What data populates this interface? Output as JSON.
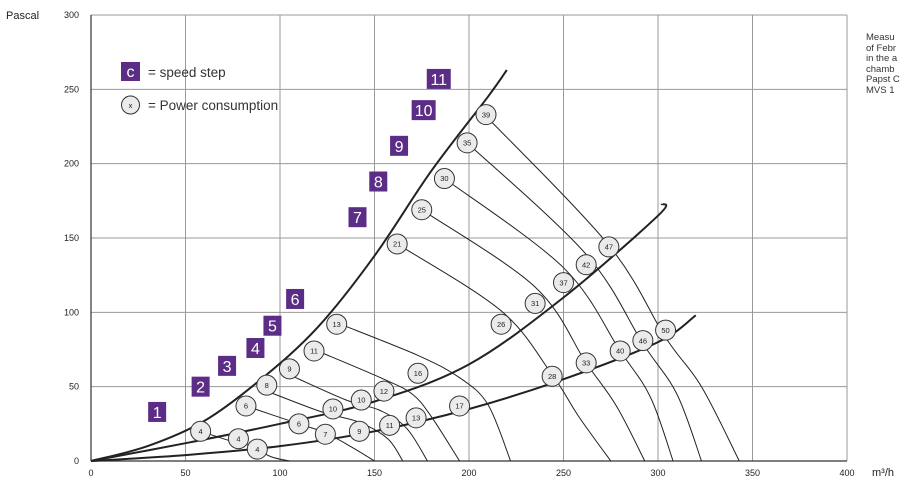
{
  "chart_data": {
    "type": "line",
    "ylabel": "Pascal",
    "xlabel": "m³/h",
    "xlim": [
      0,
      400
    ],
    "ylim": [
      0,
      300
    ],
    "x_ticks": [
      0,
      50,
      100,
      150,
      200,
      250,
      300,
      350,
      400
    ],
    "y_ticks": [
      0,
      50,
      100,
      150,
      200,
      250,
      300
    ],
    "grid": true,
    "legend": {
      "step_symbol": "c",
      "step_text": "= speed step",
      "power_symbol": "x",
      "power_text": "= Power consumption"
    },
    "system_curves": [
      {
        "x": [
          0,
          30,
          60,
          90,
          120,
          150,
          180,
          210,
          220
        ],
        "y": [
          0,
          10,
          27,
          55,
          90,
          138,
          195,
          245,
          263
        ]
      },
      {
        "x": [
          0,
          50,
          100,
          150,
          200,
          250,
          300,
          302
        ],
        "y": [
          0,
          12,
          25,
          40,
          65,
          110,
          165,
          173
        ]
      },
      {
        "x": [
          0,
          50,
          100,
          150,
          200,
          250,
          300,
          320
        ],
        "y": [
          0,
          4,
          10,
          20,
          35,
          55,
          80,
          98
        ]
      }
    ],
    "speed_steps": [
      {
        "label": "1",
        "x": 35,
        "y": 33
      },
      {
        "label": "2",
        "x": 58,
        "y": 50
      },
      {
        "label": "3",
        "x": 72,
        "y": 64
      },
      {
        "label": "4",
        "x": 87,
        "y": 76
      },
      {
        "label": "5",
        "x": 96,
        "y": 91
      },
      {
        "label": "6",
        "x": 108,
        "y": 109
      },
      {
        "label": "7",
        "x": 141,
        "y": 164
      },
      {
        "label": "8",
        "x": 152,
        "y": 188
      },
      {
        "label": "9",
        "x": 163,
        "y": 212
      },
      {
        "label": "10",
        "x": 176,
        "y": 236
      },
      {
        "label": "11",
        "x": 184,
        "y": 257
      }
    ],
    "fan_curves": [
      {
        "x": [
          58,
          75,
          85,
          95,
          105
        ],
        "y": [
          20,
          13,
          10,
          3,
          0
        ]
      },
      {
        "x": [
          82,
          110,
          124,
          137,
          150
        ],
        "y": [
          37,
          25,
          19,
          10,
          0
        ]
      },
      {
        "x": [
          93,
          122,
          142,
          157,
          165
        ],
        "y": [
          47,
          33,
          26,
          15,
          0
        ]
      },
      {
        "x": [
          105,
          135,
          153,
          167,
          178
        ],
        "y": [
          58,
          41,
          34,
          22,
          0
        ]
      },
      {
        "x": [
          118,
          155,
          170,
          180,
          195
        ],
        "y": [
          75,
          55,
          45,
          30,
          0
        ]
      },
      {
        "x": [
          130,
          173,
          195,
          210,
          222
        ],
        "y": [
          93,
          71,
          56,
          38,
          0
        ]
      },
      {
        "x": [
          162,
          217,
          244,
          258,
          275
        ],
        "y": [
          146,
          101,
          58,
          30,
          0
        ]
      },
      {
        "x": [
          175,
          235,
          262,
          278,
          293
        ],
        "y": [
          169,
          117,
          66,
          37,
          0
        ]
      },
      {
        "x": [
          187,
          250,
          280,
          296,
          308
        ],
        "y": [
          190,
          130,
          74,
          43,
          0
        ]
      },
      {
        "x": [
          199,
          262,
          292,
          310,
          323
        ],
        "y": [
          214,
          139,
          79,
          45,
          0
        ]
      },
      {
        "x": [
          209,
          274,
          304,
          323,
          343
        ],
        "y": [
          232,
          145,
          83,
          50,
          0
        ]
      }
    ],
    "power_consumption": [
      {
        "label": "4",
        "x": 58,
        "y": 20
      },
      {
        "label": "4",
        "x": 78,
        "y": 15
      },
      {
        "label": "4",
        "x": 88,
        "y": 8
      },
      {
        "label": "6",
        "x": 82,
        "y": 37
      },
      {
        "label": "6",
        "x": 110,
        "y": 25
      },
      {
        "label": "7",
        "x": 124,
        "y": 18
      },
      {
        "label": "8",
        "x": 93,
        "y": 51
      },
      {
        "label": "10",
        "x": 128,
        "y": 35
      },
      {
        "label": "9",
        "x": 142,
        "y": 20
      },
      {
        "label": "9",
        "x": 105,
        "y": 62
      },
      {
        "label": "10",
        "x": 143,
        "y": 41
      },
      {
        "label": "11",
        "x": 158,
        "y": 24
      },
      {
        "label": "11",
        "x": 118,
        "y": 74
      },
      {
        "label": "12",
        "x": 155,
        "y": 47
      },
      {
        "label": "13",
        "x": 172,
        "y": 29
      },
      {
        "label": "13",
        "x": 130,
        "y": 92
      },
      {
        "label": "16",
        "x": 173,
        "y": 59
      },
      {
        "label": "17",
        "x": 195,
        "y": 37
      },
      {
        "label": "21",
        "x": 162,
        "y": 146
      },
      {
        "label": "26",
        "x": 217,
        "y": 92
      },
      {
        "label": "28",
        "x": 244,
        "y": 57
      },
      {
        "label": "25",
        "x": 175,
        "y": 169
      },
      {
        "label": "31",
        "x": 235,
        "y": 106
      },
      {
        "label": "33",
        "x": 262,
        "y": 66
      },
      {
        "label": "30",
        "x": 187,
        "y": 190
      },
      {
        "label": "37",
        "x": 250,
        "y": 120
      },
      {
        "label": "40",
        "x": 280,
        "y": 74
      },
      {
        "label": "35",
        "x": 199,
        "y": 214
      },
      {
        "label": "42",
        "x": 262,
        "y": 132
      },
      {
        "label": "46",
        "x": 292,
        "y": 81
      },
      {
        "label": "39",
        "x": 209,
        "y": 233
      },
      {
        "label": "47",
        "x": 274,
        "y": 144
      },
      {
        "label": "50",
        "x": 304,
        "y": 88
      }
    ]
  },
  "note": {
    "lines": [
      "Measu",
      "of Febr",
      "in the a",
      "chamb",
      "Papst C",
      "MVS 1"
    ]
  },
  "colors": {
    "accent": "#5b2d86",
    "grid": "#9a9a9a",
    "curve": "#222222",
    "circle_fill": "#ebebeb"
  }
}
